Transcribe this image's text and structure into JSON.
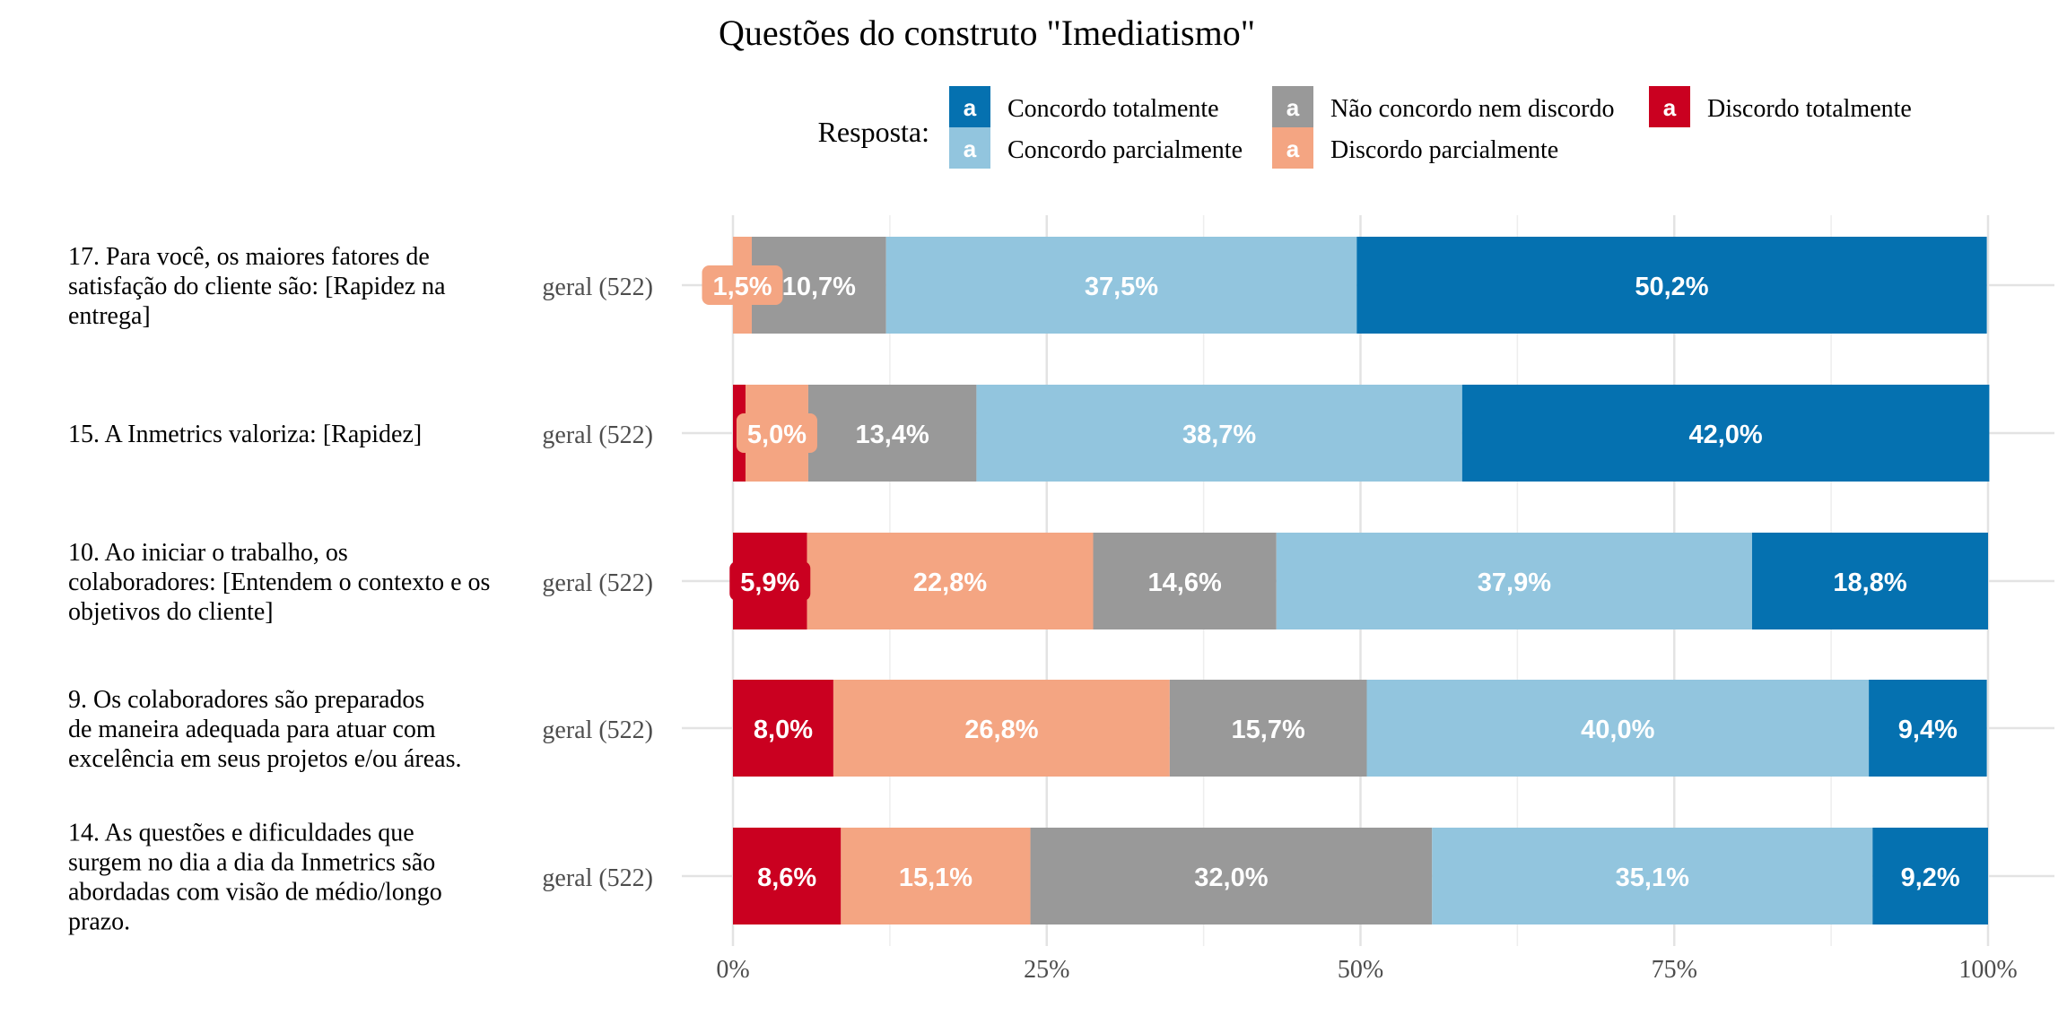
{
  "chart_data": {
    "type": "bar",
    "orientation": "horizontal-stacked-percent",
    "title": "Questões do construto \"Imediatismo\"",
    "legend": {
      "title": "Resposta:",
      "placement": "top",
      "swatch_letter": "a",
      "items": [
        {
          "name": "Concordo totalmente",
          "color": "#0571b0",
          "text_color": "#ffffff"
        },
        {
          "name": "Concordo parcialmente",
          "color": "#92c5de",
          "text_color": "#ffffff"
        },
        {
          "name": "Não concordo nem discordo",
          "color": "#999999",
          "text_color": "#ffffff"
        },
        {
          "name": "Discordo parcialmente",
          "color": "#f4a582",
          "text_color": "#ffffff"
        },
        {
          "name": "Discordo totalmente",
          "color": "#ca0020",
          "text_color": "#ffffff"
        }
      ]
    },
    "stack_order": [
      "Discordo totalmente",
      "Discordo parcialmente",
      "Não concordo nem discordo",
      "Concordo parcialmente",
      "Concordo totalmente"
    ],
    "rows": [
      {
        "question": [
          "17. Para você, os maiores fatores de",
          "satisfação do cliente são: [Rapidez na",
          "entrega]"
        ],
        "group": "geral (522)",
        "values": [
          0.0,
          1.5,
          10.7,
          37.5,
          50.2
        ],
        "labels": [
          "",
          "1,5%",
          "10,7%",
          "37,5%",
          "50,2%"
        ]
      },
      {
        "question": [
          "15. A Inmetrics valoriza: [Rapidez]"
        ],
        "group": "geral (522)",
        "values": [
          1.0,
          5.0,
          13.4,
          38.7,
          42.0
        ],
        "labels": [
          "",
          "5,0%",
          "13,4%",
          "38,7%",
          "42,0%"
        ]
      },
      {
        "question": [
          "10. Ao iniciar o trabalho, os",
          "colaboradores: [Entendem o contexto e os",
          "objetivos do cliente]"
        ],
        "group": "geral (522)",
        "values": [
          5.9,
          22.8,
          14.6,
          37.9,
          18.8
        ],
        "labels": [
          "5,9%",
          "22,8%",
          "14,6%",
          "37,9%",
          "18,8%"
        ]
      },
      {
        "question": [
          "9. Os colaboradores são preparados",
          "de maneira adequada para atuar com",
          "excelência em seus projetos e/ou áreas."
        ],
        "group": "geral (522)",
        "values": [
          8.0,
          26.8,
          15.7,
          40.0,
          9.4
        ],
        "labels": [
          "8,0%",
          "26,8%",
          "15,7%",
          "40,0%",
          "9,4%"
        ]
      },
      {
        "question": [
          "14. As questões e dificuldades que",
          "surgem no dia a dia da Inmetrics são",
          "abordadas com visão de médio/longo",
          "prazo."
        ],
        "group": "geral (522)",
        "values": [
          8.6,
          15.1,
          32.0,
          35.1,
          9.2
        ],
        "labels": [
          "8,6%",
          "15,1%",
          "32,0%",
          "35,1%",
          "9,2%"
        ]
      }
    ],
    "x_ticks": [
      0,
      25,
      50,
      75,
      100
    ],
    "x_tick_labels": [
      "0%",
      "25%",
      "50%",
      "75%",
      "100%"
    ],
    "xlim": [
      0,
      100
    ],
    "grid": true
  }
}
